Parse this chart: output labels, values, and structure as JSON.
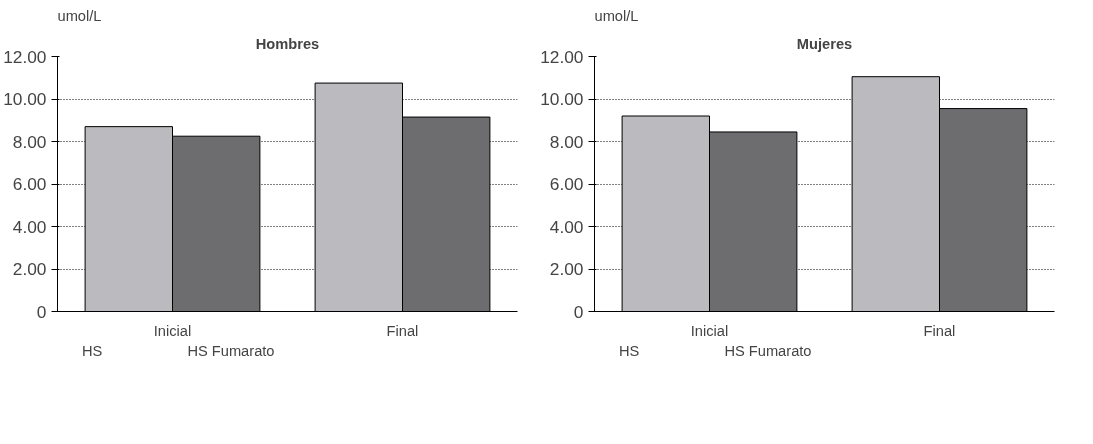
{
  "chart_data": [
    {
      "type": "bar",
      "title": "Hombres",
      "ylabel": "umol/L",
      "categories": [
        "Inicial",
        "Final"
      ],
      "series": [
        {
          "name": "HS",
          "color": "#bbbbbf",
          "values": [
            8.7,
            10.75
          ]
        },
        {
          "name": "HS Fumarato",
          "color": "#6d6d70",
          "values": [
            8.25,
            9.15
          ]
        }
      ],
      "ylim": [
        0,
        12
      ],
      "yticks": [
        {
          "value": 0,
          "label": "0"
        },
        {
          "value": 2,
          "label": "2.00"
        },
        {
          "value": 4,
          "label": "4.00"
        },
        {
          "value": 6,
          "label": "6.00"
        },
        {
          "value": 8,
          "label": "8.00"
        },
        {
          "value": 10,
          "label": "10.00"
        },
        {
          "value": 12,
          "label": "12.00"
        }
      ],
      "grid": "y",
      "legend": "bottom left"
    },
    {
      "type": "bar",
      "title": "Mujeres",
      "ylabel": "umol/L",
      "categories": [
        "Inicial",
        "Final"
      ],
      "series": [
        {
          "name": "HS",
          "color": "#bbbbbf",
          "values": [
            9.2,
            11.05
          ]
        },
        {
          "name": "HS Fumarato",
          "color": "#6d6d70",
          "values": [
            8.45,
            9.55
          ]
        }
      ],
      "ylim": [
        0,
        12
      ],
      "yticks": [
        {
          "value": 0,
          "label": "0"
        },
        {
          "value": 2,
          "label": "2.00"
        },
        {
          "value": 4,
          "label": "4.00"
        },
        {
          "value": 6,
          "label": "6.00"
        },
        {
          "value": 8,
          "label": "8.00"
        },
        {
          "value": 10,
          "label": "10.00"
        },
        {
          "value": 12,
          "label": "12.00"
        }
      ],
      "grid": "y",
      "legend": "bottom left"
    }
  ]
}
